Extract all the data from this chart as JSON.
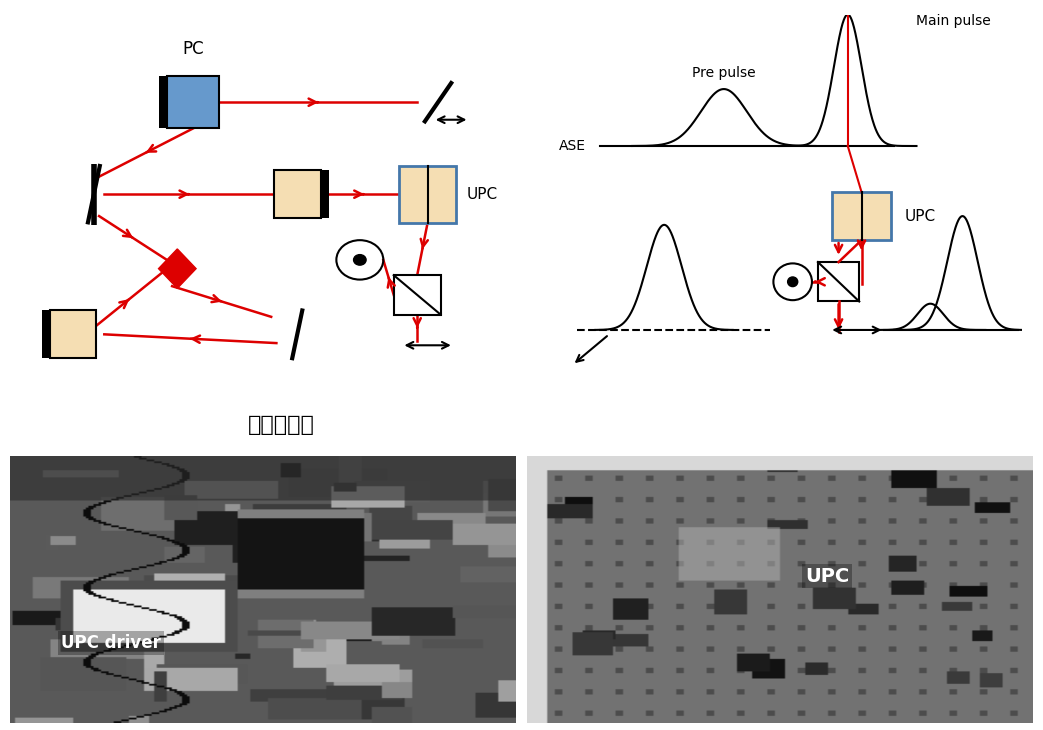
{
  "background_color": "#ffffff",
  "korean_label": "재생증폭기",
  "left_diagram": {
    "pc_label": "PC",
    "upc_label": "UPC",
    "pc_box_color": "#6699cc",
    "upc_box_color": "#f5deb3",
    "amp_box_color": "#f5deb3",
    "red_color": "#dd0000",
    "black_color": "#000000",
    "blue_outline": "#4477aa"
  },
  "right_diagram": {
    "main_pulse_label": "Main pulse",
    "pre_pulse_label": "Pre pulse",
    "ase_label": "ASE",
    "upc_label": "UPC",
    "upc_box_color": "#f5deb3",
    "blue_outline": "#4477aa",
    "red_color": "#dd0000",
    "black_color": "#000000"
  },
  "photo_left_label": "UPC driver",
  "photo_right_label": "UPC"
}
